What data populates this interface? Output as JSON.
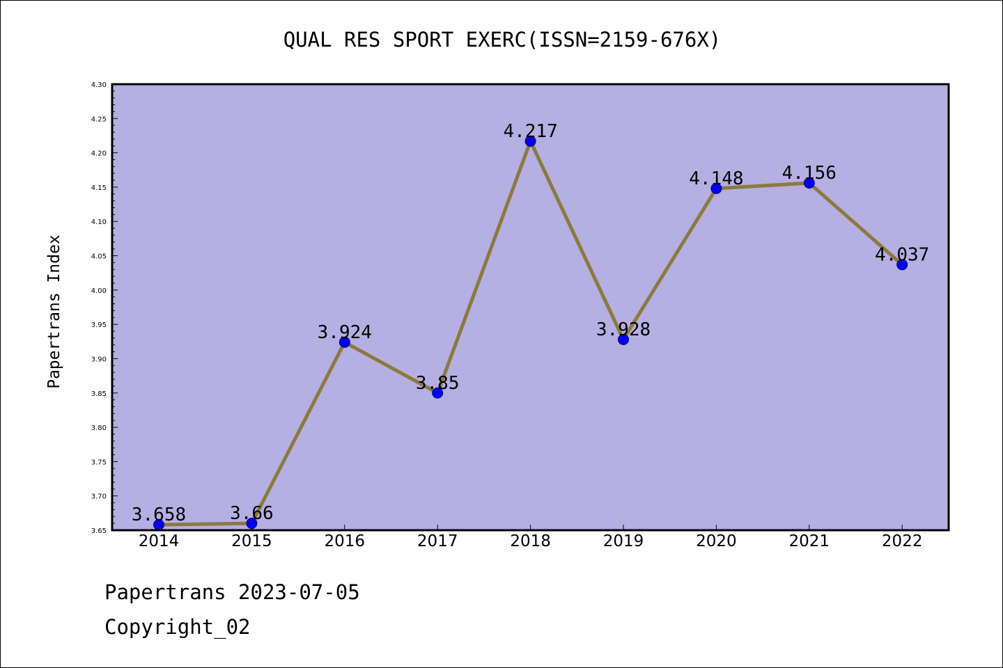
{
  "chart_data": {
    "type": "line",
    "title": "QUAL RES SPORT EXERC(ISSN=2159-676X)",
    "ylabel": "Papertrans Index",
    "xlabel": "",
    "categories": [
      "2014",
      "2015",
      "2016",
      "2017",
      "2018",
      "2019",
      "2020",
      "2021",
      "2022"
    ],
    "values": [
      3.658,
      3.66,
      3.924,
      3.85,
      4.217,
      3.928,
      4.148,
      4.156,
      4.037
    ],
    "data_labels": [
      "3.658",
      "3.66",
      "3.924",
      "3.85",
      "4.217",
      "3.928",
      "4.148",
      "4.156",
      "4.037"
    ],
    "ylim": [
      3.65,
      4.3
    ],
    "yticks": [
      "3.65",
      "3.70",
      "3.75",
      "3.80",
      "3.85",
      "3.90",
      "3.95",
      "4.00",
      "4.05",
      "4.10",
      "4.15",
      "4.20",
      "4.25",
      "4.30"
    ],
    "grid": false,
    "legend": "none",
    "colors": {
      "plot_background": "#b5afe2",
      "line": "#8b7a3e",
      "marker": "#0000ee",
      "marker_edge": "#00007a",
      "axis": "#000000"
    }
  },
  "footer": {
    "line1": "Papertrans 2023-07-05",
    "line2": "Copyright_02"
  }
}
